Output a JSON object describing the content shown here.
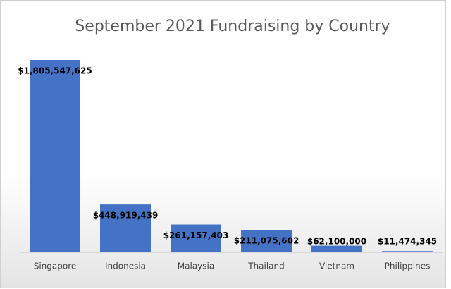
{
  "chart_data": {
    "type": "bar",
    "title": "September 2021 Fundraising by Country",
    "categories": [
      "Singapore",
      "Indonesia",
      "Malaysia",
      "Thailand",
      "Vietnam",
      "Philippines"
    ],
    "values": [
      1805547625,
      448919439,
      261157403,
      211075602,
      62100000,
      11474345
    ],
    "value_labels": [
      "$1,805,547,625",
      "$448,919,439",
      "$261,157,403",
      "$211,075,602",
      "$62,100,000",
      "$11,474,345"
    ],
    "color": "#4472c4"
  }
}
